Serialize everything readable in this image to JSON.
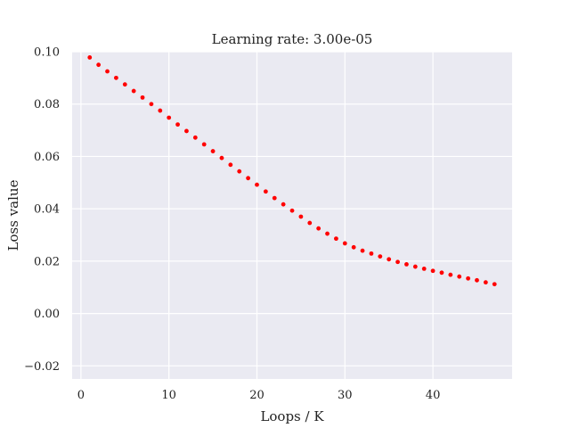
{
  "chart_data": {
    "type": "scatter",
    "title": "Learning rate: 3.00e-05",
    "xlabel": "Loops / K",
    "ylabel": "Loss value",
    "xlim": [
      -1,
      49
    ],
    "ylim": [
      -0.025,
      0.1
    ],
    "x_ticks": [
      0,
      10,
      20,
      30,
      40
    ],
    "x_tick_labels": [
      "0",
      "10",
      "20",
      "30",
      "40"
    ],
    "y_ticks": [
      -0.02,
      0.0,
      0.02,
      0.04,
      0.06,
      0.08,
      0.1
    ],
    "y_tick_labels": [
      "−0.02",
      "0.00",
      "0.02",
      "0.04",
      "0.06",
      "0.08",
      "0.10"
    ],
    "grid": true,
    "background_color": "#eaeaf2",
    "grid_color": "#ffffff",
    "marker_color": "#ff0000",
    "series": [
      {
        "x": [
          1,
          2,
          3,
          4,
          5,
          6,
          7,
          8,
          9,
          10,
          11,
          12,
          13,
          14,
          15,
          16,
          17,
          18,
          19,
          20,
          21,
          22,
          23,
          24,
          25,
          26,
          27,
          28,
          29,
          30,
          31,
          32,
          33,
          34,
          35,
          36,
          37,
          38,
          39,
          40,
          41,
          42,
          43,
          44,
          45,
          46,
          47
        ],
        "y": [
          0.0978,
          0.095,
          0.0925,
          0.09,
          0.0875,
          0.085,
          0.0825,
          0.08,
          0.0775,
          0.0748,
          0.0722,
          0.0697,
          0.0672,
          0.0646,
          0.062,
          0.0594,
          0.0568,
          0.0543,
          0.0517,
          0.0492,
          0.0466,
          0.0441,
          0.0417,
          0.0393,
          0.037,
          0.0346,
          0.0325,
          0.0305,
          0.0286,
          0.0268,
          0.0253,
          0.024,
          0.0229,
          0.0218,
          0.0207,
          0.0197,
          0.0188,
          0.0179,
          0.0171,
          0.0163,
          0.0156,
          0.0148,
          0.0141,
          0.0134,
          0.0127,
          0.0119,
          0.0112
        ]
      }
    ]
  }
}
